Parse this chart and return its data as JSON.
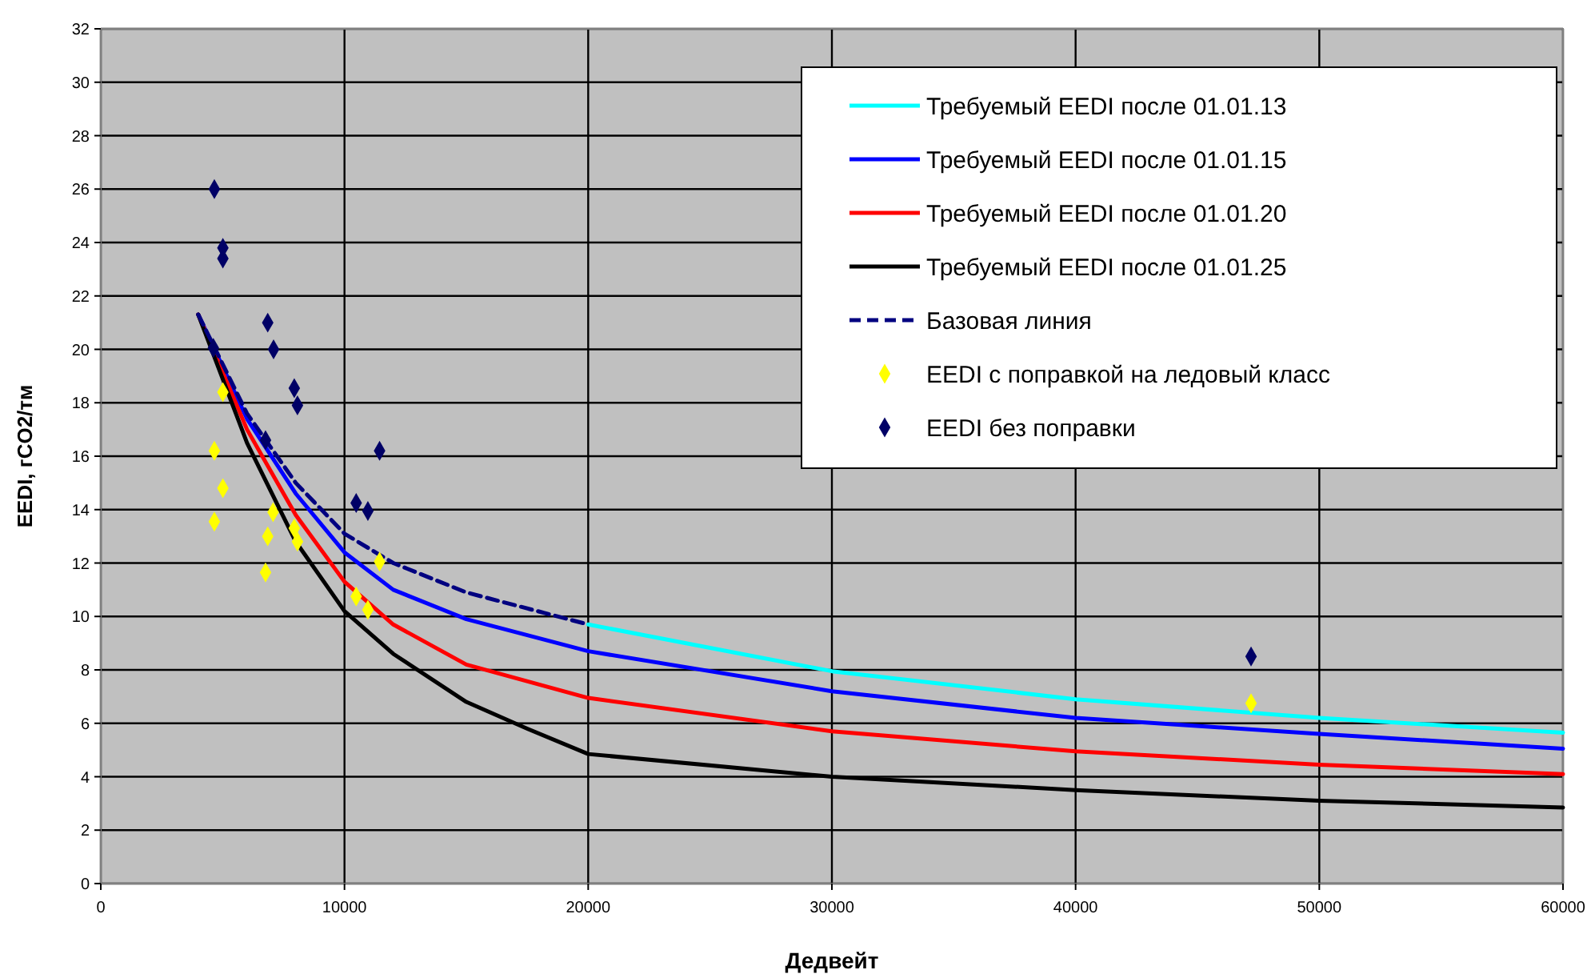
{
  "chart_data": {
    "type": "line",
    "xlabel": "Дедвейт",
    "ylabel": "EEDI, гCO2/тм",
    "xlim": [
      0,
      60000
    ],
    "ylim": [
      0,
      32
    ],
    "xticks": [
      0,
      10000,
      20000,
      30000,
      40000,
      50000,
      60000
    ],
    "yticks": [
      0,
      2,
      4,
      6,
      8,
      10,
      12,
      14,
      16,
      18,
      20,
      22,
      24,
      26,
      28,
      30,
      32
    ],
    "grid": true,
    "legend": "top right",
    "marker": "none",
    "line_style": "solid",
    "series": [
      {
        "name": "Требуемый EEDI после 01.01.13",
        "color": "#00ffff",
        "x": [
          20000,
          30000,
          40000,
          50000,
          60000
        ],
        "values": [
          9.7,
          7.95,
          6.9,
          6.2,
          5.65
        ]
      },
      {
        "name": "Требуемый EEDI после 01.01.15",
        "color": "#0000ff",
        "x": [
          4000,
          6000,
          8000,
          10000,
          12000,
          15000,
          20000,
          30000,
          40000,
          50000,
          60000
        ],
        "values": [
          21.3,
          17.4,
          14.6,
          12.4,
          11.0,
          9.9,
          8.7,
          7.2,
          6.2,
          5.6,
          5.05
        ]
      },
      {
        "name": "Требуемый EEDI после 01.01.20",
        "color": "#ff0000",
        "x": [
          4000,
          6000,
          8000,
          10000,
          12000,
          15000,
          20000,
          30000,
          40000,
          50000,
          60000
        ],
        "values": [
          21.3,
          17.0,
          13.8,
          11.3,
          9.7,
          8.2,
          6.95,
          5.7,
          4.95,
          4.45,
          4.1
        ]
      },
      {
        "name": "Требуемый EEDI после 01.01.25",
        "color": "#000000",
        "x": [
          4000,
          6000,
          8000,
          10000,
          12000,
          15000,
          17500,
          20000,
          30000,
          40000,
          50000,
          60000
        ],
        "values": [
          21.3,
          16.5,
          12.8,
          10.2,
          8.6,
          6.8,
          5.8,
          4.85,
          4.0,
          3.5,
          3.1,
          2.85
        ]
      },
      {
        "name": "Базовая линия",
        "color": "#000080",
        "line_style": "dashed",
        "x": [
          4000,
          6000,
          8000,
          10000,
          12000,
          15000,
          20000
        ],
        "values": [
          21.3,
          17.6,
          15.0,
          13.1,
          12.0,
          10.9,
          9.7
        ]
      },
      {
        "name": "EEDI с поправкой на ледовый класс",
        "type": "scatter",
        "marker": "diamond",
        "color": "#ffff00",
        "x": [
          5010,
          4660,
          5010,
          4660,
          7070,
          6850,
          7940,
          8070,
          6760,
          11440,
          10480,
          10960,
          47200
        ],
        "values": [
          18.4,
          16.2,
          14.8,
          13.55,
          13.9,
          13.0,
          13.3,
          12.8,
          11.65,
          12.05,
          10.75,
          10.25,
          6.75
        ]
      },
      {
        "name": "EEDI без поправки",
        "type": "scatter",
        "marker": "diamond",
        "color": "#000066",
        "x": [
          4660,
          5010,
          5010,
          6850,
          7090,
          7940,
          8070,
          11440,
          4620,
          6760,
          10480,
          10960,
          47200
        ],
        "values": [
          26,
          23.8,
          23.4,
          21.0,
          20.0,
          18.55,
          17.9,
          16.2,
          20.05,
          16.6,
          14.25,
          13.95,
          8.5
        ]
      }
    ]
  }
}
